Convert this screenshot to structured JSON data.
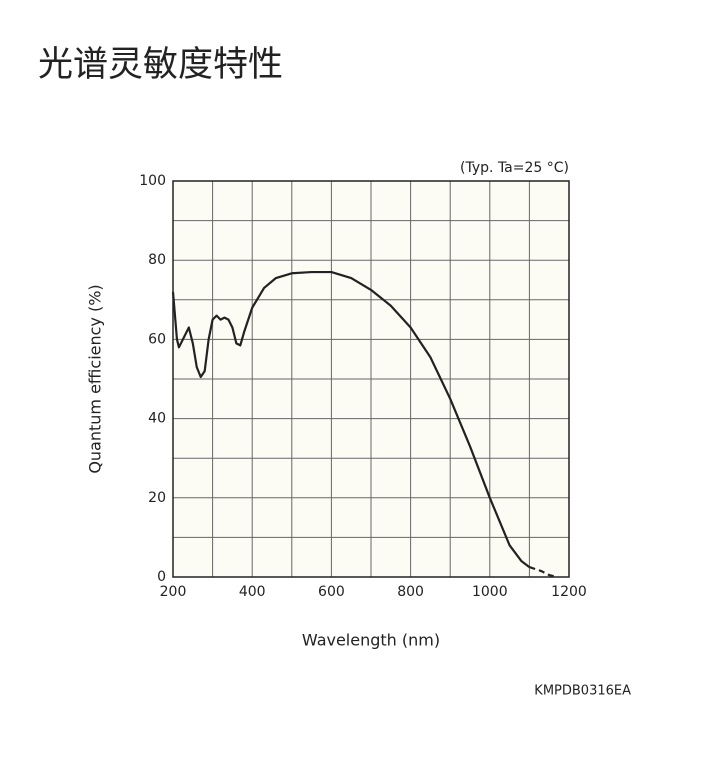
{
  "page_title": "光谱灵敏度特性",
  "chart_data": {
    "type": "line",
    "annotation": "(Typ. Ta=25 °C)",
    "x_label": "Wavelength (nm)",
    "y_label": "Quantum efficiency (%)",
    "footnote": "KMPDB0316EA",
    "xlim": [
      200,
      1200
    ],
    "ylim": [
      0,
      100
    ],
    "xticks": [
      200,
      400,
      600,
      800,
      1000,
      1200
    ],
    "yticks": [
      0,
      20,
      40,
      60,
      80,
      100
    ],
    "x_grid": [
      200,
      300,
      400,
      500,
      600,
      700,
      800,
      900,
      1000,
      1100,
      1200
    ],
    "y_grid": [
      0,
      10,
      20,
      30,
      40,
      50,
      60,
      70,
      80,
      90,
      100
    ],
    "series": [
      {
        "color": "#222222",
        "style": "solid",
        "x": [
          200,
          210,
          215,
          225,
          240,
          250,
          260,
          270,
          280,
          290,
          300,
          310,
          320,
          330,
          340,
          350,
          360,
          370,
          380,
          400,
          430,
          460,
          500,
          550,
          600,
          650,
          700,
          750,
          800,
          850,
          900,
          950,
          1000,
          1050,
          1080,
          1100
        ],
        "values": [
          72,
          60,
          58,
          60,
          63,
          59,
          53,
          50.5,
          52,
          60,
          65,
          66,
          65,
          65.5,
          65,
          63,
          59,
          58.5,
          62,
          68,
          73,
          75.5,
          76.7,
          77,
          77,
          75.5,
          72.5,
          68.5,
          63,
          55.5,
          45,
          33,
          20,
          8,
          4,
          2.5
        ]
      },
      {
        "color": "#222222",
        "style": "dashed",
        "x": [
          1100,
          1130,
          1150,
          1170
        ],
        "values": [
          2.5,
          1.5,
          0.5,
          0
        ]
      }
    ]
  }
}
